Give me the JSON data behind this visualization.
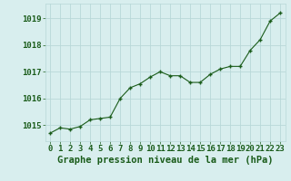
{
  "hours": [
    0,
    1,
    2,
    3,
    4,
    5,
    6,
    7,
    8,
    9,
    10,
    11,
    12,
    13,
    14,
    15,
    16,
    17,
    18,
    19,
    20,
    21,
    22,
    23
  ],
  "pressure": [
    1014.7,
    1014.9,
    1014.85,
    1014.95,
    1015.2,
    1015.25,
    1015.3,
    1016.0,
    1016.4,
    1016.55,
    1016.8,
    1017.0,
    1016.85,
    1016.85,
    1016.6,
    1016.6,
    1016.9,
    1017.1,
    1017.2,
    1017.2,
    1017.8,
    1018.2,
    1018.9,
    1019.2
  ],
  "line_color": "#1a5c1a",
  "marker_color": "#1a5c1a",
  "bg_color": "#d8eeee",
  "grid_color": "#b8d8d8",
  "ylabel_ticks": [
    1015,
    1016,
    1017,
    1018,
    1019
  ],
  "xlabel": "Graphe pression niveau de la mer (hPa)",
  "xlabel_color": "#1a5c1a",
  "ylim": [
    1014.4,
    1019.55
  ],
  "xlim": [
    -0.5,
    23.5
  ],
  "tick_fontsize": 6.5,
  "label_fontsize": 7.5
}
